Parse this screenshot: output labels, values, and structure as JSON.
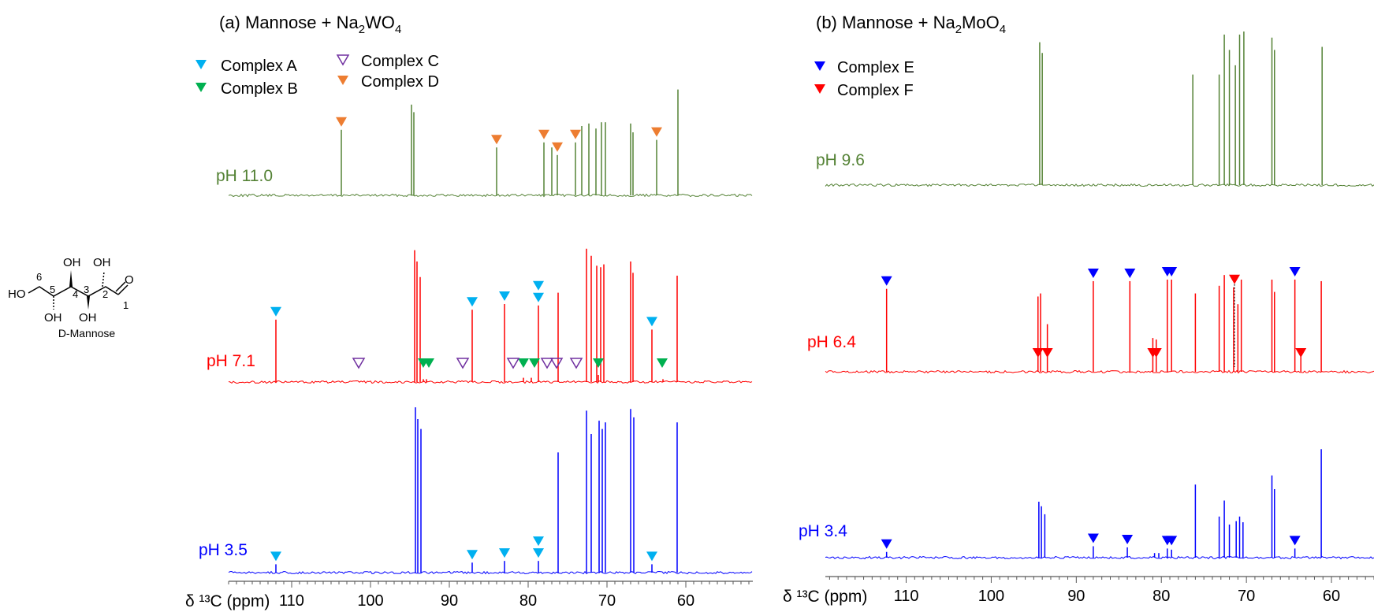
{
  "molecule": {
    "name": "D-Mannose",
    "oh_label": "OH",
    "ho_label": "HO",
    "o_label": "O",
    "carbon_numbers": [
      "1",
      "2",
      "3",
      "4",
      "5",
      "6"
    ]
  },
  "axis_label": "δ ¹³C (ppm)",
  "colors": {
    "complex_a": "#00b0f0",
    "complex_b": "#00b050",
    "complex_c": "#7030a0",
    "complex_d": "#ed7d31",
    "complex_e": "#0000ff",
    "complex_f": "#ff0000",
    "ph_high_w": "#548235",
    "ph_mid": "#ff0000",
    "ph_low": "#0000ff",
    "axis": "#595959"
  },
  "chart_data": [
    {
      "type": "line",
      "title": "(a) Mannose + Na2WO4",
      "title_parts": {
        "prefix": "(a) Mannose + Na",
        "sub1": "2",
        "mid": "WO",
        "sub2": "4"
      },
      "xlabel": "δ ¹³C (ppm)",
      "xlim": [
        118,
        51.5
      ],
      "x_reversed": true,
      "xticks": [
        110,
        100,
        90,
        80,
        70,
        60
      ],
      "legend": [
        {
          "label": "Complex A",
          "marker": "filled-triangle",
          "color_key": "complex_a"
        },
        {
          "label": "Complex B",
          "marker": "filled-triangle",
          "color_key": "complex_b"
        },
        {
          "label": "Complex C",
          "marker": "open-triangle",
          "color_key": "complex_c"
        },
        {
          "label": "Complex D",
          "marker": "filled-triangle",
          "color_key": "complex_d"
        }
      ],
      "series": [
        {
          "name": "pH 11.0",
          "color_key": "ph_high_w",
          "peaks": [
            [
              103.7,
              0.52
            ],
            [
              94.8,
              0.72
            ],
            [
              94.5,
              0.66
            ],
            [
              84.0,
              0.38
            ],
            [
              78.0,
              0.42
            ],
            [
              77.0,
              0.38
            ],
            [
              76.3,
              0.32
            ],
            [
              74.0,
              0.42
            ],
            [
              73.2,
              0.55
            ],
            [
              72.3,
              0.57
            ],
            [
              71.4,
              0.53
            ],
            [
              70.7,
              0.58
            ],
            [
              70.2,
              0.58
            ],
            [
              67.0,
              0.57
            ],
            [
              66.7,
              0.5
            ],
            [
              63.7,
              0.44
            ],
            [
              61.0,
              0.84
            ]
          ],
          "markers": [
            {
              "complex": "D",
              "x": [
                103.7,
                84.0,
                78.0,
                76.3,
                74.0,
                63.7
              ],
              "level": 1
            }
          ]
        },
        {
          "name": "pH 7.1",
          "color_key": "ph_mid",
          "peaks": [
            [
              112.0,
              0.44
            ],
            [
              94.4,
              0.93
            ],
            [
              94.1,
              0.85
            ],
            [
              93.7,
              0.74
            ],
            [
              87.1,
              0.51
            ],
            [
              83.0,
              0.55
            ],
            [
              78.7,
              0.54
            ],
            [
              76.2,
              0.63
            ],
            [
              72.6,
              0.94
            ],
            [
              72.0,
              0.89
            ],
            [
              71.3,
              0.82
            ],
            [
              70.8,
              0.81
            ],
            [
              70.4,
              0.83
            ],
            [
              67.0,
              0.85
            ],
            [
              66.7,
              0.77
            ],
            [
              64.3,
              0.37
            ],
            [
              61.1,
              0.75
            ],
            [
              93.3,
              0.02
            ],
            [
              92.9,
              0.02
            ],
            [
              80.6,
              0.03
            ],
            [
              79.6,
              0.03
            ],
            [
              71.1,
              0.05
            ],
            [
              62.9,
              0.02
            ]
          ],
          "markers": [
            {
              "complex": "A",
              "x": [
                112.0,
                87.1,
                83.0,
                78.7,
                64.3
              ],
              "level": 1
            },
            {
              "complex": "A",
              "x": [
                78.7
              ],
              "level": 2
            },
            {
              "complex": "B",
              "x": [
                93.3,
                92.6,
                80.6,
                79.2,
                71.1,
                63.0
              ],
              "level": 0
            },
            {
              "complex": "C",
              "x": [
                101.5,
                88.3,
                81.9,
                77.6,
                76.4,
                73.9
              ],
              "level": 0
            }
          ]
        },
        {
          "name": "pH 3.5",
          "color_key": "ph_low",
          "peaks": [
            [
              112.0,
              0.05
            ],
            [
              94.3,
              0.99
            ],
            [
              94.0,
              0.92
            ],
            [
              93.6,
              0.86
            ],
            [
              87.1,
              0.06
            ],
            [
              83.0,
              0.07
            ],
            [
              78.7,
              0.07
            ],
            [
              76.2,
              0.72
            ],
            [
              72.6,
              0.97
            ],
            [
              72.0,
              0.83
            ],
            [
              71.0,
              0.91
            ],
            [
              70.6,
              0.86
            ],
            [
              70.2,
              0.9
            ],
            [
              67.0,
              0.98
            ],
            [
              66.6,
              0.93
            ],
            [
              64.3,
              0.05
            ],
            [
              61.1,
              0.9
            ]
          ],
          "markers": [
            {
              "complex": "A",
              "x": [
                112.0,
                87.1,
                83.0,
                78.7,
                64.3
              ],
              "level": 1
            },
            {
              "complex": "A",
              "x": [
                78.7
              ],
              "level": 2
            }
          ]
        }
      ]
    },
    {
      "type": "line",
      "title": "(b) Mannose + Na2MoO4",
      "title_parts": {
        "prefix": "(b) Mannose + Na",
        "sub1": "2",
        "mid": "MoO",
        "sub2": "4"
      },
      "xlabel": "δ ¹³C (ppm)",
      "xlim": [
        119.5,
        55
      ],
      "x_reversed": true,
      "xticks": [
        110,
        100,
        90,
        80,
        70,
        60
      ],
      "legend": [
        {
          "label": "Complex E",
          "marker": "filled-triangle",
          "color_key": "complex_e"
        },
        {
          "label": "Complex F",
          "marker": "filled-triangle",
          "color_key": "complex_f"
        }
      ],
      "series": [
        {
          "name": "pH 9.6",
          "color_key": "ph_high_w",
          "peaks": [
            [
              94.3,
              0.93
            ],
            [
              94.0,
              0.86
            ],
            [
              76.3,
              0.72
            ],
            [
              73.2,
              0.72
            ],
            [
              72.6,
              0.98
            ],
            [
              72.0,
              0.88
            ],
            [
              71.3,
              0.78
            ],
            [
              70.8,
              0.98
            ],
            [
              70.3,
              1.0
            ],
            [
              67.0,
              0.96
            ],
            [
              66.7,
              0.88
            ],
            [
              61.1,
              0.9
            ]
          ],
          "markers": []
        },
        {
          "name": "pH 6.4",
          "color_key": "ph_mid",
          "peaks": [
            [
              112.3,
              0.54
            ],
            [
              94.5,
              0.49
            ],
            [
              94.2,
              0.51
            ],
            [
              93.4,
              0.31
            ],
            [
              88.0,
              0.59
            ],
            [
              83.7,
              0.59
            ],
            [
              79.3,
              0.6
            ],
            [
              78.8,
              0.6
            ],
            [
              81.0,
              0.22
            ],
            [
              80.6,
              0.21
            ],
            [
              76.0,
              0.51
            ],
            [
              73.2,
              0.56
            ],
            [
              72.6,
              0.63
            ],
            [
              71.5,
              0.55
            ],
            [
              71.0,
              0.44
            ],
            [
              70.6,
              0.6
            ],
            [
              67.0,
              0.6
            ],
            [
              66.7,
              0.52
            ],
            [
              64.3,
              0.6
            ],
            [
              63.6,
              0.15
            ],
            [
              61.2,
              0.59
            ]
          ],
          "markers": [
            {
              "complex": "E",
              "x": [
                112.3,
                88.0,
                83.7,
                79.3,
                78.8,
                64.3
              ],
              "level": 1
            },
            {
              "complex": "F",
              "x": [
                94.5,
                93.4,
                81.0,
                80.6,
                63.6
              ],
              "level": 0
            },
            {
              "complex": "F",
              "x": [
                71.4
              ],
              "level": 1,
              "dashed_drop": true
            }
          ]
        },
        {
          "name": "pH 3.4",
          "color_key": "ph_low",
          "peaks": [
            [
              112.3,
              0.05
            ],
            [
              94.4,
              0.49
            ],
            [
              94.1,
              0.45
            ],
            [
              93.7,
              0.38
            ],
            [
              88.0,
              0.1
            ],
            [
              84.0,
              0.09
            ],
            [
              79.3,
              0.08
            ],
            [
              78.8,
              0.07
            ],
            [
              80.8,
              0.04
            ],
            [
              80.3,
              0.04
            ],
            [
              76.0,
              0.64
            ],
            [
              73.2,
              0.36
            ],
            [
              72.6,
              0.5
            ],
            [
              72.0,
              0.29
            ],
            [
              71.2,
              0.32
            ],
            [
              70.8,
              0.36
            ],
            [
              70.4,
              0.31
            ],
            [
              67.0,
              0.72
            ],
            [
              66.7,
              0.6
            ],
            [
              64.3,
              0.08
            ],
            [
              61.2,
              0.95
            ]
          ],
          "markers": [
            {
              "complex": "E",
              "x": [
                112.3,
                88.0,
                84.0,
                79.3,
                78.8,
                64.3
              ],
              "level": 1
            }
          ]
        }
      ]
    }
  ]
}
